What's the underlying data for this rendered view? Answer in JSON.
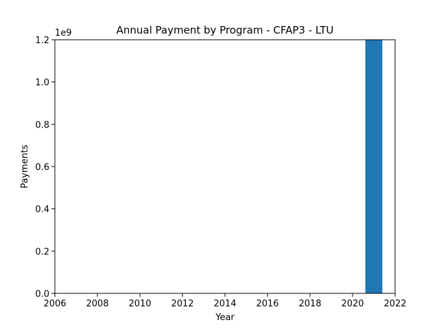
{
  "chart_data": {
    "type": "bar",
    "title": "Annual Payment by Program - CFAP3 - LTU",
    "xlabel": "Year",
    "ylabel": "Payments",
    "y_offset_text": "1e9",
    "x": [
      2021
    ],
    "values": [
      1200000000
    ],
    "bar_width": 0.8,
    "xlim": [
      2006,
      2022
    ],
    "ylim": [
      0,
      1200000000
    ],
    "x_ticks": [
      2006,
      2008,
      2010,
      2012,
      2014,
      2016,
      2018,
      2020,
      2022
    ],
    "x_tick_labels": [
      "2006",
      "2008",
      "2010",
      "2012",
      "2014",
      "2016",
      "2018",
      "2020",
      "2022"
    ],
    "y_ticks": [
      0,
      200000000,
      400000000,
      600000000,
      800000000,
      1000000000,
      1200000000
    ],
    "y_tick_labels": [
      "0.0",
      "0.2",
      "0.4",
      "0.6",
      "0.8",
      "1.0",
      "1.2"
    ],
    "grid": false,
    "legend": "none",
    "bar_color": "#1f77b4"
  }
}
